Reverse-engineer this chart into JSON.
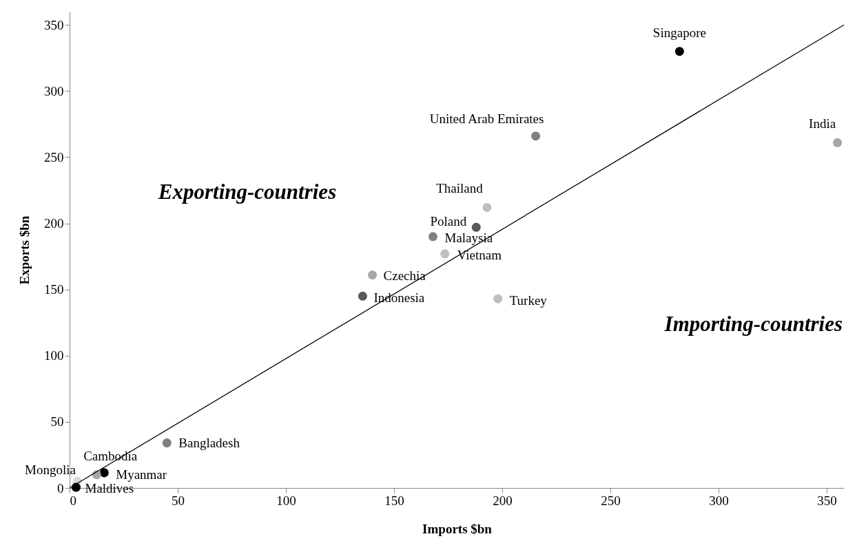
{
  "chart_data": {
    "type": "scatter",
    "xlabel": "Imports $bn",
    "ylabel": "Exports $bn",
    "xlim": [
      0,
      358
    ],
    "ylim": [
      0,
      360
    ],
    "xticks": [
      0,
      50,
      100,
      150,
      200,
      250,
      300,
      350
    ],
    "yticks": [
      0,
      50,
      100,
      150,
      200,
      250,
      300,
      350
    ],
    "grid": false,
    "marker": "circle",
    "series": [
      {
        "name": "Singapore",
        "color": "#000000",
        "x": [
          282
        ],
        "values": [
          330
        ]
      },
      {
        "name": "United Arab Emirates",
        "color": "#808080",
        "x": [
          215.5
        ],
        "values": [
          266
        ]
      },
      {
        "name": "India",
        "color": "#a6a6a6",
        "x": [
          355
        ],
        "values": [
          261
        ]
      },
      {
        "name": "Thailand",
        "color": "#bfbfbf",
        "x": [
          193
        ],
        "values": [
          212
        ]
      },
      {
        "name": "Poland",
        "color": "#595959",
        "x": [
          188
        ],
        "values": [
          197
        ]
      },
      {
        "name": "Malaysia",
        "color": "#808080",
        "x": [
          168
        ],
        "values": [
          190
        ]
      },
      {
        "name": "Vietnam",
        "color": "#bfbfbf",
        "x": [
          173.5
        ],
        "values": [
          177
        ]
      },
      {
        "name": "Czechia",
        "color": "#a6a6a6",
        "x": [
          140
        ],
        "values": [
          161
        ]
      },
      {
        "name": "Indonesia",
        "color": "#595959",
        "x": [
          135.5
        ],
        "values": [
          145
        ]
      },
      {
        "name": "Turkey",
        "color": "#bfbfbf",
        "x": [
          198
        ],
        "values": [
          143
        ]
      },
      {
        "name": "Bangladesh",
        "color": "#808080",
        "x": [
          45
        ],
        "values": [
          34
        ]
      },
      {
        "name": "Myanmar",
        "color": "#000000",
        "x": [
          16
        ],
        "values": [
          11.5
        ]
      },
      {
        "name": "Cambodia",
        "color": "#a6a6a6",
        "x": [
          12.5
        ],
        "values": [
          10
        ]
      },
      {
        "name": "Mongolia",
        "color": "#d9d9d9",
        "x": [
          3.5
        ],
        "values": [
          5
        ]
      },
      {
        "name": "Maldives",
        "color": "#000000",
        "x": [
          3
        ],
        "values": [
          0.5
        ]
      },
      {
        "type": "line",
        "marker": "none",
        "color": "#000000",
        "x": [
          0,
          358
        ],
        "values": [
          0,
          350
        ]
      }
    ],
    "annotations": [
      "Exporting-countries",
      "Importing-countries"
    ]
  }
}
